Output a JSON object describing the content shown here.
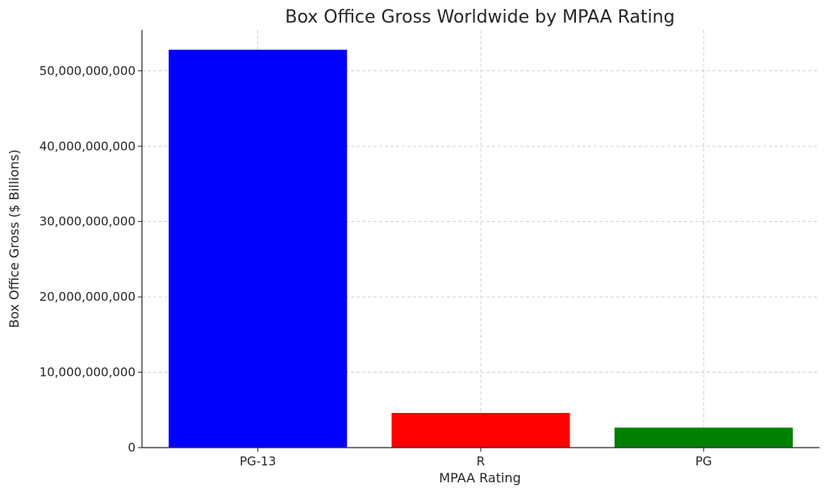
{
  "chart_data": {
    "type": "bar",
    "title": "Box Office Gross Worldwide by MPAA Rating",
    "xlabel": "MPAA Rating",
    "ylabel": "Box Office Gross ($ Billions)",
    "categories": [
      "PG-13",
      "R",
      "PG"
    ],
    "values": [
      52800000000,
      4600000000,
      2650000000
    ],
    "colors": [
      "#0000ff",
      "#ff0000",
      "#008000"
    ],
    "ylim": [
      0,
      55440000000
    ],
    "yticks": [
      0,
      10000000000,
      20000000000,
      30000000000,
      40000000000,
      50000000000
    ],
    "ytick_labels": [
      "0",
      "10,000,000,000",
      "20,000,000,000",
      "30,000,000,000",
      "40,000,000,000",
      "50,000,000,000"
    ],
    "grid": true
  }
}
